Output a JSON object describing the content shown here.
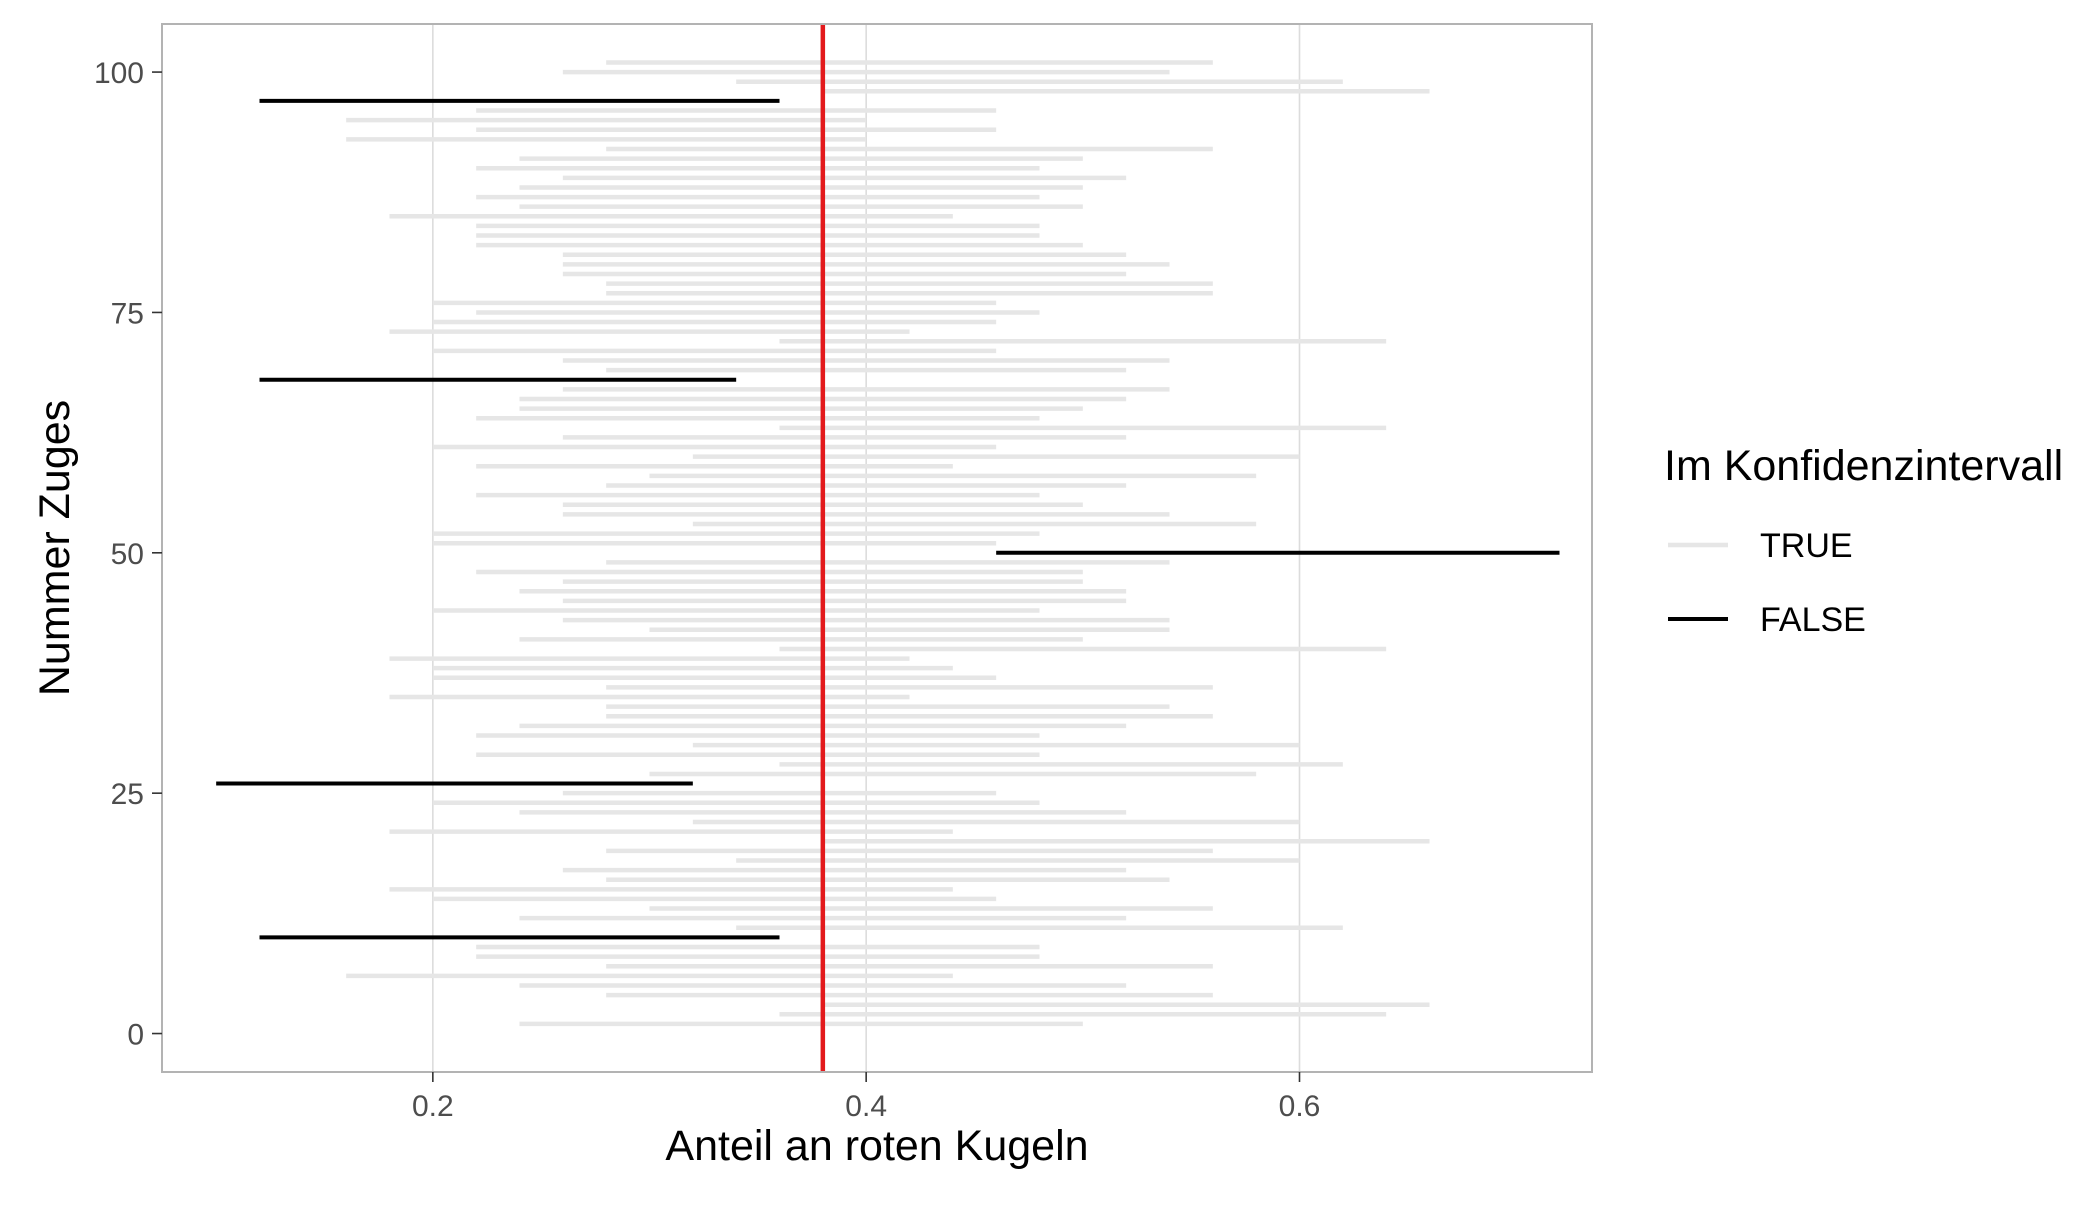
{
  "chart_data": {
    "type": "interval",
    "xlabel": "Anteil an roten Kugeln",
    "ylabel": "Nummer Zuges",
    "xlim": [
      0.075,
      0.735
    ],
    "ylim": [
      -4,
      105
    ],
    "xticks": [
      0.2,
      0.4,
      0.6
    ],
    "xtick_labels": [
      "0.2",
      "0.4",
      "0.6"
    ],
    "yticks": [
      0,
      25,
      50,
      75,
      100
    ],
    "ytick_labels": [
      "0",
      "25",
      "50",
      "75",
      "100"
    ],
    "grid": true,
    "reference_line": {
      "x": 0.38,
      "color": "#e31a1c"
    },
    "legend": {
      "title": "Im Konfidenzintervall",
      "position": "right",
      "items": [
        {
          "label": "TRUE",
          "color": "#e6e6e6"
        },
        {
          "label": "FALSE",
          "color": "#000000"
        }
      ]
    },
    "colors": {
      "true": "#e6e6e6",
      "false": "#000000",
      "grid": "#dcdcdc",
      "panel_border": "#b3b3b3"
    },
    "intervals": [
      {
        "y": 1,
        "lo": 0.24,
        "hi": 0.5,
        "in_ci": true
      },
      {
        "y": 2,
        "lo": 0.36,
        "hi": 0.64,
        "in_ci": true
      },
      {
        "y": 3,
        "lo": 0.38,
        "hi": 0.66,
        "in_ci": true
      },
      {
        "y": 4,
        "lo": 0.28,
        "hi": 0.56,
        "in_ci": true
      },
      {
        "y": 5,
        "lo": 0.24,
        "hi": 0.52,
        "in_ci": true
      },
      {
        "y": 6,
        "lo": 0.16,
        "hi": 0.44,
        "in_ci": true
      },
      {
        "y": 7,
        "lo": 0.28,
        "hi": 0.56,
        "in_ci": true
      },
      {
        "y": 8,
        "lo": 0.22,
        "hi": 0.48,
        "in_ci": true
      },
      {
        "y": 9,
        "lo": 0.22,
        "hi": 0.48,
        "in_ci": true
      },
      {
        "y": 10,
        "lo": 0.12,
        "hi": 0.36,
        "in_ci": false
      },
      {
        "y": 11,
        "lo": 0.34,
        "hi": 0.62,
        "in_ci": true
      },
      {
        "y": 12,
        "lo": 0.24,
        "hi": 0.52,
        "in_ci": true
      },
      {
        "y": 13,
        "lo": 0.3,
        "hi": 0.56,
        "in_ci": true
      },
      {
        "y": 14,
        "lo": 0.2,
        "hi": 0.46,
        "in_ci": true
      },
      {
        "y": 15,
        "lo": 0.18,
        "hi": 0.44,
        "in_ci": true
      },
      {
        "y": 16,
        "lo": 0.28,
        "hi": 0.54,
        "in_ci": true
      },
      {
        "y": 17,
        "lo": 0.26,
        "hi": 0.52,
        "in_ci": true
      },
      {
        "y": 18,
        "lo": 0.34,
        "hi": 0.6,
        "in_ci": true
      },
      {
        "y": 19,
        "lo": 0.28,
        "hi": 0.56,
        "in_ci": true
      },
      {
        "y": 20,
        "lo": 0.38,
        "hi": 0.66,
        "in_ci": true
      },
      {
        "y": 21,
        "lo": 0.18,
        "hi": 0.44,
        "in_ci": true
      },
      {
        "y": 22,
        "lo": 0.32,
        "hi": 0.6,
        "in_ci": true
      },
      {
        "y": 23,
        "lo": 0.24,
        "hi": 0.52,
        "in_ci": true
      },
      {
        "y": 24,
        "lo": 0.2,
        "hi": 0.48,
        "in_ci": true
      },
      {
        "y": 25,
        "lo": 0.26,
        "hi": 0.46,
        "in_ci": true
      },
      {
        "y": 26,
        "lo": 0.1,
        "hi": 0.32,
        "in_ci": false
      },
      {
        "y": 27,
        "lo": 0.3,
        "hi": 0.58,
        "in_ci": true
      },
      {
        "y": 28,
        "lo": 0.36,
        "hi": 0.62,
        "in_ci": true
      },
      {
        "y": 29,
        "lo": 0.22,
        "hi": 0.48,
        "in_ci": true
      },
      {
        "y": 30,
        "lo": 0.32,
        "hi": 0.6,
        "in_ci": true
      },
      {
        "y": 31,
        "lo": 0.22,
        "hi": 0.48,
        "in_ci": true
      },
      {
        "y": 32,
        "lo": 0.24,
        "hi": 0.52,
        "in_ci": true
      },
      {
        "y": 33,
        "lo": 0.28,
        "hi": 0.56,
        "in_ci": true
      },
      {
        "y": 34,
        "lo": 0.28,
        "hi": 0.54,
        "in_ci": true
      },
      {
        "y": 35,
        "lo": 0.18,
        "hi": 0.42,
        "in_ci": true
      },
      {
        "y": 36,
        "lo": 0.28,
        "hi": 0.56,
        "in_ci": true
      },
      {
        "y": 37,
        "lo": 0.2,
        "hi": 0.46,
        "in_ci": true
      },
      {
        "y": 38,
        "lo": 0.2,
        "hi": 0.44,
        "in_ci": true
      },
      {
        "y": 39,
        "lo": 0.18,
        "hi": 0.42,
        "in_ci": true
      },
      {
        "y": 40,
        "lo": 0.36,
        "hi": 0.64,
        "in_ci": true
      },
      {
        "y": 41,
        "lo": 0.24,
        "hi": 0.5,
        "in_ci": true
      },
      {
        "y": 42,
        "lo": 0.3,
        "hi": 0.54,
        "in_ci": true
      },
      {
        "y": 43,
        "lo": 0.26,
        "hi": 0.54,
        "in_ci": true
      },
      {
        "y": 44,
        "lo": 0.2,
        "hi": 0.48,
        "in_ci": true
      },
      {
        "y": 45,
        "lo": 0.26,
        "hi": 0.52,
        "in_ci": true
      },
      {
        "y": 46,
        "lo": 0.24,
        "hi": 0.52,
        "in_ci": true
      },
      {
        "y": 47,
        "lo": 0.26,
        "hi": 0.5,
        "in_ci": true
      },
      {
        "y": 48,
        "lo": 0.22,
        "hi": 0.5,
        "in_ci": true
      },
      {
        "y": 49,
        "lo": 0.28,
        "hi": 0.54,
        "in_ci": true
      },
      {
        "y": 50,
        "lo": 0.46,
        "hi": 0.72,
        "in_ci": false
      },
      {
        "y": 51,
        "lo": 0.2,
        "hi": 0.46,
        "in_ci": true
      },
      {
        "y": 52,
        "lo": 0.2,
        "hi": 0.48,
        "in_ci": true
      },
      {
        "y": 53,
        "lo": 0.32,
        "hi": 0.58,
        "in_ci": true
      },
      {
        "y": 54,
        "lo": 0.26,
        "hi": 0.54,
        "in_ci": true
      },
      {
        "y": 55,
        "lo": 0.26,
        "hi": 0.5,
        "in_ci": true
      },
      {
        "y": 56,
        "lo": 0.22,
        "hi": 0.48,
        "in_ci": true
      },
      {
        "y": 57,
        "lo": 0.28,
        "hi": 0.52,
        "in_ci": true
      },
      {
        "y": 58,
        "lo": 0.3,
        "hi": 0.58,
        "in_ci": true
      },
      {
        "y": 59,
        "lo": 0.22,
        "hi": 0.44,
        "in_ci": true
      },
      {
        "y": 60,
        "lo": 0.32,
        "hi": 0.6,
        "in_ci": true
      },
      {
        "y": 61,
        "lo": 0.2,
        "hi": 0.46,
        "in_ci": true
      },
      {
        "y": 62,
        "lo": 0.26,
        "hi": 0.52,
        "in_ci": true
      },
      {
        "y": 63,
        "lo": 0.36,
        "hi": 0.64,
        "in_ci": true
      },
      {
        "y": 64,
        "lo": 0.22,
        "hi": 0.48,
        "in_ci": true
      },
      {
        "y": 65,
        "lo": 0.24,
        "hi": 0.5,
        "in_ci": true
      },
      {
        "y": 66,
        "lo": 0.24,
        "hi": 0.52,
        "in_ci": true
      },
      {
        "y": 67,
        "lo": 0.26,
        "hi": 0.54,
        "in_ci": true
      },
      {
        "y": 68,
        "lo": 0.12,
        "hi": 0.34,
        "in_ci": false
      },
      {
        "y": 69,
        "lo": 0.28,
        "hi": 0.52,
        "in_ci": true
      },
      {
        "y": 70,
        "lo": 0.26,
        "hi": 0.54,
        "in_ci": true
      },
      {
        "y": 71,
        "lo": 0.2,
        "hi": 0.46,
        "in_ci": true
      },
      {
        "y": 72,
        "lo": 0.36,
        "hi": 0.64,
        "in_ci": true
      },
      {
        "y": 73,
        "lo": 0.18,
        "hi": 0.42,
        "in_ci": true
      },
      {
        "y": 74,
        "lo": 0.2,
        "hi": 0.46,
        "in_ci": true
      },
      {
        "y": 75,
        "lo": 0.22,
        "hi": 0.48,
        "in_ci": true
      },
      {
        "y": 76,
        "lo": 0.2,
        "hi": 0.46,
        "in_ci": true
      },
      {
        "y": 77,
        "lo": 0.28,
        "hi": 0.56,
        "in_ci": true
      },
      {
        "y": 78,
        "lo": 0.28,
        "hi": 0.56,
        "in_ci": true
      },
      {
        "y": 79,
        "lo": 0.26,
        "hi": 0.52,
        "in_ci": true
      },
      {
        "y": 80,
        "lo": 0.26,
        "hi": 0.54,
        "in_ci": true
      },
      {
        "y": 81,
        "lo": 0.26,
        "hi": 0.52,
        "in_ci": true
      },
      {
        "y": 82,
        "lo": 0.22,
        "hi": 0.5,
        "in_ci": true
      },
      {
        "y": 83,
        "lo": 0.22,
        "hi": 0.48,
        "in_ci": true
      },
      {
        "y": 84,
        "lo": 0.22,
        "hi": 0.48,
        "in_ci": true
      },
      {
        "y": 85,
        "lo": 0.18,
        "hi": 0.44,
        "in_ci": true
      },
      {
        "y": 86,
        "lo": 0.24,
        "hi": 0.5,
        "in_ci": true
      },
      {
        "y": 87,
        "lo": 0.22,
        "hi": 0.48,
        "in_ci": true
      },
      {
        "y": 88,
        "lo": 0.24,
        "hi": 0.5,
        "in_ci": true
      },
      {
        "y": 89,
        "lo": 0.26,
        "hi": 0.52,
        "in_ci": true
      },
      {
        "y": 90,
        "lo": 0.22,
        "hi": 0.48,
        "in_ci": true
      },
      {
        "y": 91,
        "lo": 0.24,
        "hi": 0.5,
        "in_ci": true
      },
      {
        "y": 92,
        "lo": 0.28,
        "hi": 0.56,
        "in_ci": true
      },
      {
        "y": 93,
        "lo": 0.16,
        "hi": 0.4,
        "in_ci": true
      },
      {
        "y": 94,
        "lo": 0.22,
        "hi": 0.46,
        "in_ci": true
      },
      {
        "y": 95,
        "lo": 0.16,
        "hi": 0.4,
        "in_ci": true
      },
      {
        "y": 96,
        "lo": 0.22,
        "hi": 0.46,
        "in_ci": true
      },
      {
        "y": 97,
        "lo": 0.12,
        "hi": 0.36,
        "in_ci": false
      },
      {
        "y": 98,
        "lo": 0.38,
        "hi": 0.66,
        "in_ci": true
      },
      {
        "y": 99,
        "lo": 0.34,
        "hi": 0.62,
        "in_ci": true
      },
      {
        "y": 100,
        "lo": 0.26,
        "hi": 0.54,
        "in_ci": true
      },
      {
        "y": 101,
        "lo": 0.28,
        "hi": 0.56,
        "in_ci": true
      }
    ]
  }
}
